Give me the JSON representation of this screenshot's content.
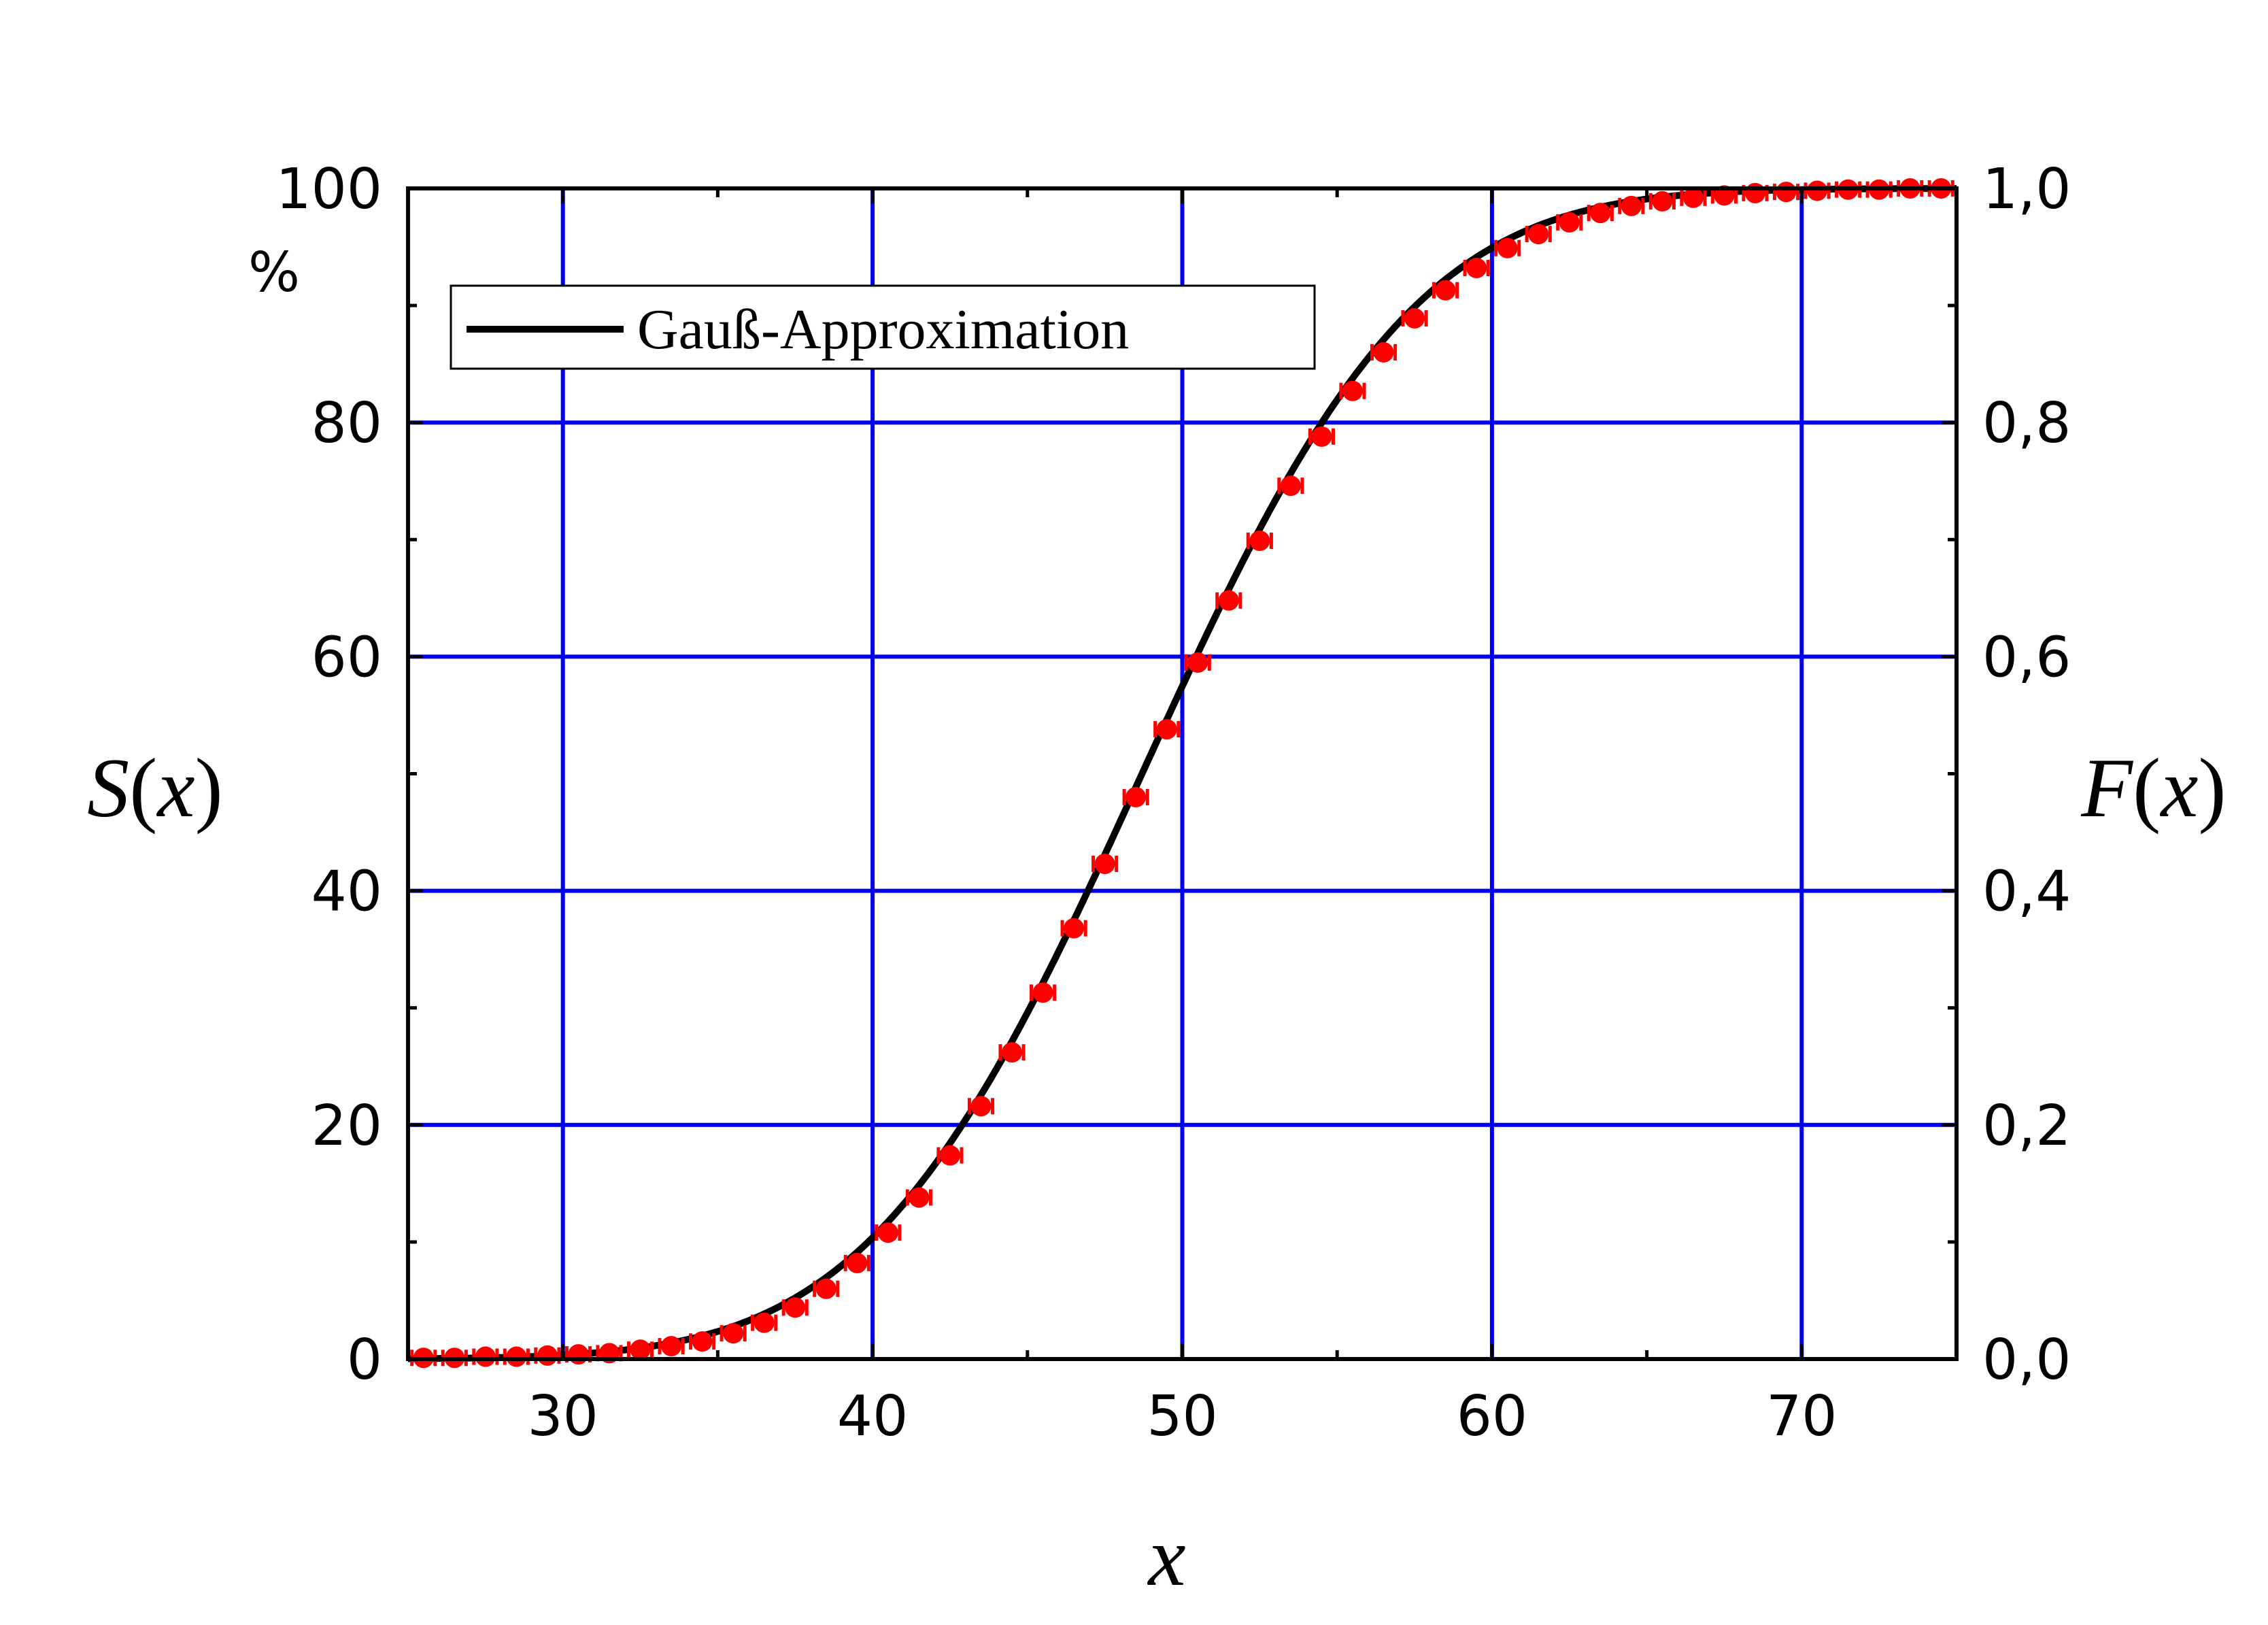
{
  "chart_data": {
    "type": "scatter",
    "title": "",
    "xlabel": "x",
    "ylabel_left": "S(x)",
    "ylabel_left_unit": "%",
    "ylabel_right": "F(x)",
    "xlim": [
      25,
      75
    ],
    "ylim": [
      0,
      100
    ],
    "y2lim": [
      0,
      1
    ],
    "x_ticks": [
      30,
      40,
      50,
      60,
      70
    ],
    "x_tick_labels": [
      "30",
      "40",
      "50",
      "60",
      "70"
    ],
    "y_ticks": [
      0,
      20,
      40,
      60,
      80,
      100
    ],
    "y_tick_labels": [
      "0",
      "20",
      "40",
      "60",
      "80",
      "100"
    ],
    "y2_ticks": [
      0,
      0.2,
      0.4,
      0.6,
      0.8,
      1.0
    ],
    "y2_tick_labels": [
      "0,0",
      "0,2",
      "0,4",
      "0,6",
      "0,8",
      "1,0"
    ],
    "grid": true,
    "grid_color": "#0000ee",
    "legend_placement": "top-left",
    "series": [
      {
        "name": "Gauß-Approximation",
        "kind": "line",
        "color": "#000000",
        "distribution": "normal-cdf",
        "mean": 48.7,
        "std": 6.9
      },
      {
        "kind": "points-with-x-error",
        "color": "#ff0000",
        "x_error": 0.5,
        "x": [
          25.5,
          26.5,
          27.5,
          28.5,
          29.5,
          30.5,
          31.5,
          32.5,
          33.5,
          34.5,
          35.5,
          36.5,
          37.5,
          38.5,
          39.5,
          40.5,
          41.5,
          42.5,
          43.5,
          44.5,
          45.5,
          46.5,
          47.5,
          48.5,
          49.5,
          50.5,
          51.5,
          52.5,
          53.5,
          54.5,
          55.5,
          56.5,
          57.5,
          58.5,
          59.5,
          60.5,
          61.5,
          62.5,
          63.5,
          64.5,
          65.5,
          66.5,
          67.5,
          68.5,
          69.5,
          70.5,
          71.5,
          72.5,
          73.5,
          74.5
        ],
        "y": [
          0.1,
          0.1,
          0.2,
          0.2,
          0.3,
          0.4,
          0.5,
          0.8,
          1.1,
          1.5,
          2.2,
          3.1,
          4.4,
          6.0,
          8.2,
          10.8,
          13.8,
          17.4,
          21.6,
          26.2,
          31.3,
          36.8,
          42.3,
          48.0,
          53.8,
          59.5,
          64.8,
          69.9,
          74.6,
          78.8,
          82.7,
          86.0,
          88.9,
          91.3,
          93.2,
          94.9,
          96.1,
          97.1,
          97.9,
          98.5,
          98.9,
          99.2,
          99.4,
          99.6,
          99.7,
          99.8,
          99.9,
          99.9,
          100.0,
          100.0
        ]
      }
    ]
  }
}
